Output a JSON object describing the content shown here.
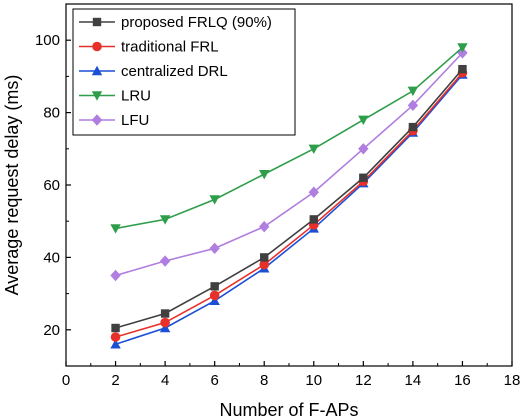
{
  "chart_data": {
    "type": "line",
    "title": "",
    "xlabel": "Number of F-APs",
    "ylabel": "Average request delay (ms)",
    "xlim": [
      0,
      18
    ],
    "ylim": [
      10,
      110
    ],
    "xticks": [
      0,
      2,
      4,
      6,
      8,
      10,
      12,
      14,
      16,
      18
    ],
    "yticks": [
      20,
      40,
      60,
      80,
      100
    ],
    "grid": false,
    "legend_position": "top-left",
    "x": [
      2,
      4,
      6,
      8,
      10,
      12,
      14,
      16
    ],
    "series": [
      {
        "name": "proposed FRLQ (90%)",
        "color": "#404040",
        "marker": "square",
        "values": [
          20.5,
          24.5,
          32,
          40,
          50.5,
          62,
          76,
          92
        ]
      },
      {
        "name": "traditional FRL",
        "color": "#e8302a",
        "marker": "circle",
        "values": [
          18,
          22,
          29.5,
          38,
          49,
          61,
          75,
          91
        ]
      },
      {
        "name": "centralized DRL",
        "color": "#1a4fd6",
        "marker": "triangle-up",
        "values": [
          16,
          20.5,
          28,
          37,
          48,
          60.5,
          74.5,
          90.5
        ]
      },
      {
        "name": "LRU",
        "color": "#2e9e4a",
        "marker": "triangle-down",
        "values": [
          48,
          50.5,
          56,
          63,
          70,
          78,
          86,
          98
        ]
      },
      {
        "name": "LFU",
        "color": "#b07de0",
        "marker": "diamond",
        "values": [
          35,
          39,
          42.5,
          48.5,
          58,
          70,
          82,
          96.5
        ]
      }
    ]
  }
}
